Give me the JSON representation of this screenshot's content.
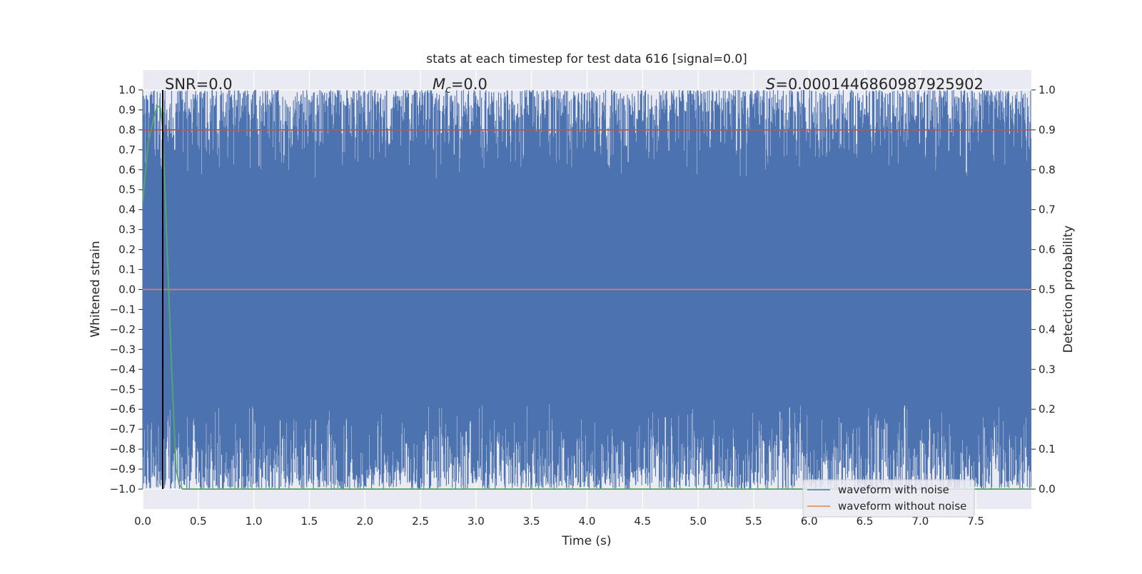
{
  "chart_data": {
    "type": "line",
    "title": "stats at each timestep for test data 616 [signal=0.0]",
    "xlabel": "Time (s)",
    "ylabel_left": "Whitened strain",
    "ylabel_right": "Detection probability",
    "xlim": [
      0.0,
      8.0
    ],
    "ylim_left": [
      -1.1,
      1.1
    ],
    "ylim_right": [
      -0.05,
      1.05
    ],
    "xticks": [
      "0.0",
      "0.5",
      "1.0",
      "1.5",
      "2.0",
      "2.5",
      "3.0",
      "3.5",
      "4.0",
      "4.5",
      "5.0",
      "5.5",
      "6.0",
      "6.5",
      "7.0",
      "7.5"
    ],
    "yticks_left": [
      "1.0",
      "0.9",
      "0.8",
      "0.7",
      "0.6",
      "0.5",
      "0.4",
      "0.3",
      "0.2",
      "0.1",
      "0.0",
      "−0.1",
      "−0.2",
      "−0.3",
      "−0.4",
      "−0.5",
      "−0.6",
      "−0.7",
      "−0.8",
      "−0.9",
      "−1.0"
    ],
    "yticks_right": [
      "1.0",
      "0.9",
      "0.8",
      "0.7",
      "0.6",
      "0.5",
      "0.4",
      "0.3",
      "0.2",
      "0.1",
      "0.0"
    ],
    "grid": true,
    "annotations": {
      "snr": "SNR=0.0",
      "mc_symbol": "M",
      "mc_sub": "c",
      "mc_value": "=0.0",
      "s_symbol": "S",
      "s_value": "=0.0001446860987925902"
    },
    "marker_line_x": 0.18,
    "series": [
      {
        "name": "waveform with noise",
        "axis": "left",
        "color": "#4c72b0",
        "description_range": [
          -1.0,
          1.0
        ]
      },
      {
        "name": "waveform without noise",
        "axis": "left",
        "color": "#dd8452",
        "x": [
          0.0,
          8.0
        ],
        "y": [
          0.0,
          0.0
        ]
      },
      {
        "name": "",
        "axis": "right",
        "color": "#55a868",
        "x": [
          0.0,
          0.05,
          0.1,
          0.13,
          0.16,
          0.18,
          0.22,
          0.26,
          0.3,
          0.33,
          0.36,
          0.4,
          1.0,
          2.0,
          3.0,
          4.0,
          5.0,
          6.0,
          7.0,
          8.0
        ],
        "y": [
          0.72,
          0.87,
          0.93,
          0.96,
          0.955,
          0.9,
          0.6,
          0.3,
          0.05,
          0.01,
          0.0,
          0.0,
          0.0,
          0.0,
          0.0,
          0.0,
          0.0,
          0.0,
          0.0,
          0.0
        ]
      },
      {
        "name": "",
        "axis": "right",
        "color": "#c44e52",
        "x": [
          0.0,
          8.0
        ],
        "y": [
          0.9,
          0.9
        ]
      }
    ],
    "legend": {
      "placement": "lower-right",
      "entries": [
        "waveform with noise",
        "waveform without noise"
      ]
    }
  }
}
